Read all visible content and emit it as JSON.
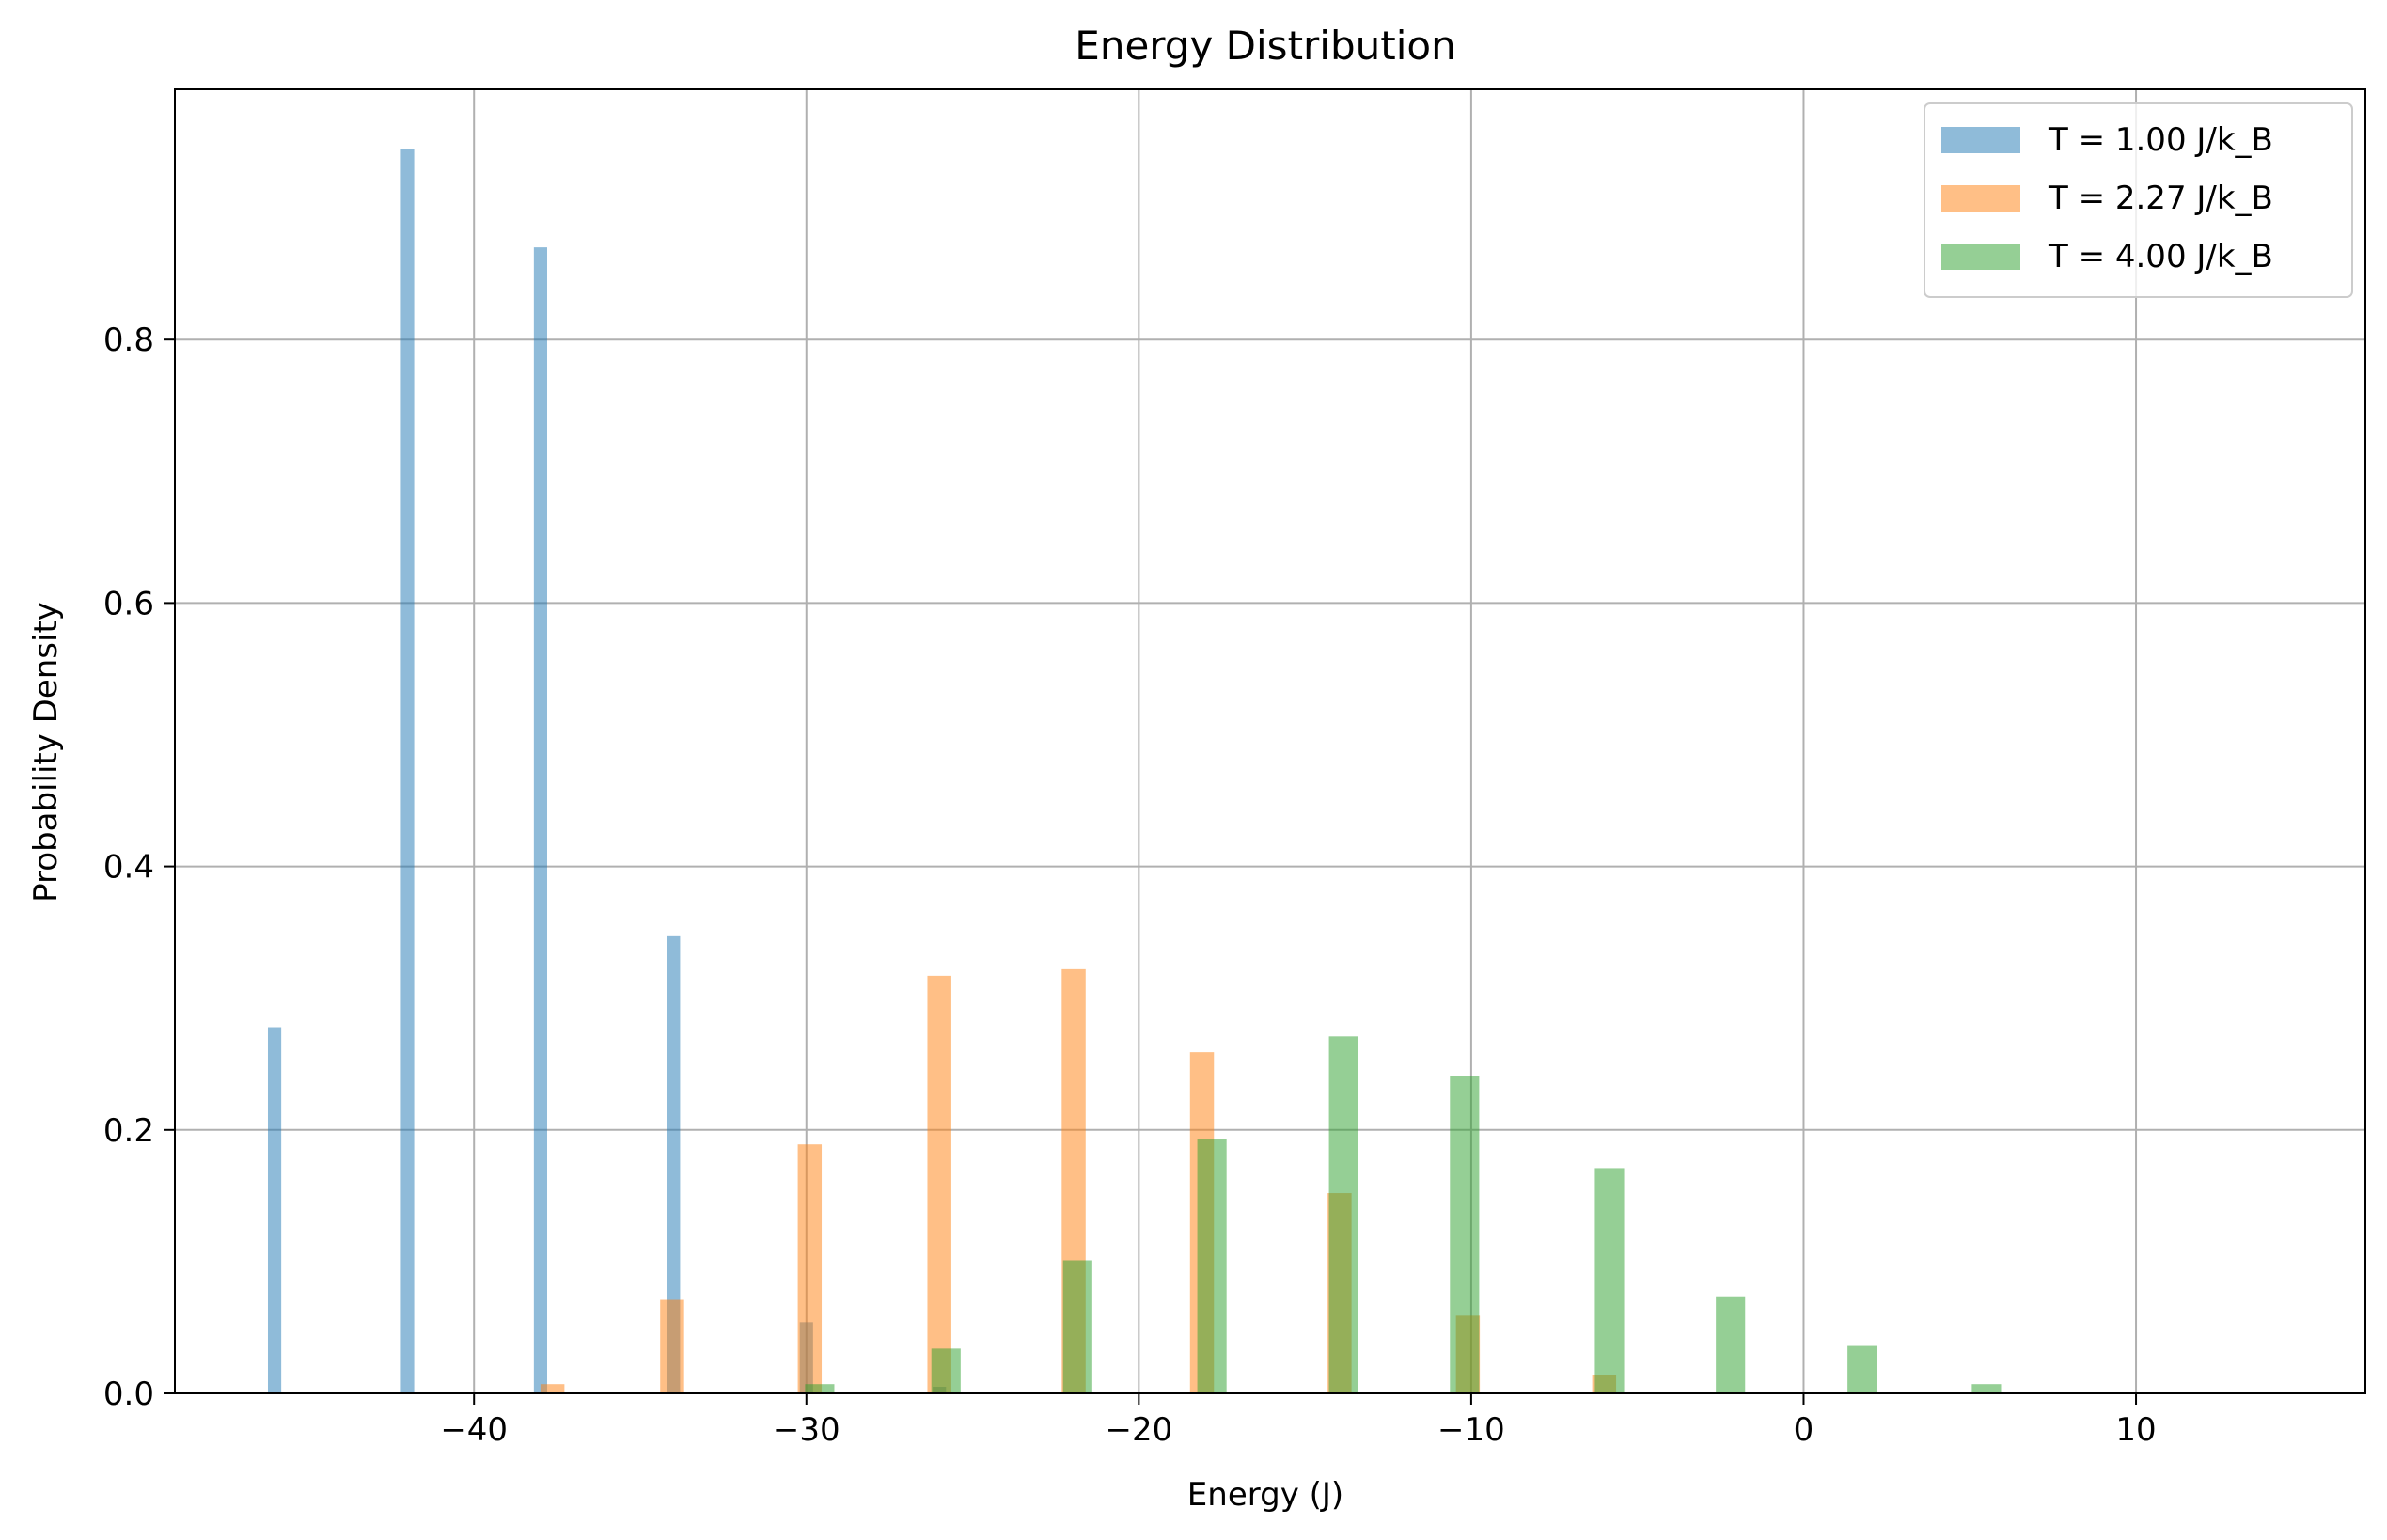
{
  "chart_data": {
    "type": "bar",
    "title": "Energy Distribution",
    "xlabel": "Energy (J)",
    "ylabel": "Probability Density",
    "xlim": [
      -49,
      16.9
    ],
    "ylim": [
      0,
      0.99
    ],
    "xticks": [
      -40,
      -30,
      -20,
      -10,
      0,
      10
    ],
    "xtick_labels": [
      "−40",
      "−30",
      "−20",
      "−10",
      "0",
      "10"
    ],
    "yticks": [
      0.0,
      0.2,
      0.4,
      0.6,
      0.8
    ],
    "ytick_labels": [
      "0.0",
      "0.2",
      "0.4",
      "0.6",
      "0.8"
    ],
    "grid": true,
    "legend_position": "top-right",
    "series": [
      {
        "name": "T = 1.00 J/k_B",
        "color": "#1f77b4",
        "bin_width": 0.4,
        "bars": [
          {
            "x": -46.0,
            "value": 0.278
          },
          {
            "x": -42.0,
            "value": 0.945
          },
          {
            "x": -38.0,
            "value": 0.87
          },
          {
            "x": -34.0,
            "value": 0.347
          },
          {
            "x": -30.0,
            "value": 0.054
          },
          {
            "x": -26.0,
            "value": 0.005
          }
        ]
      },
      {
        "name": "T = 2.27 J/k_B",
        "color": "#ff7f0e",
        "bin_width": 0.72,
        "bars": [
          {
            "x": -37.64,
            "value": 0.007
          },
          {
            "x": -34.04,
            "value": 0.071
          },
          {
            "x": -29.9,
            "value": 0.189
          },
          {
            "x": -26.0,
            "value": 0.317
          },
          {
            "x": -21.96,
            "value": 0.322
          },
          {
            "x": -18.1,
            "value": 0.259
          },
          {
            "x": -13.96,
            "value": 0.152
          },
          {
            "x": -10.1,
            "value": 0.059
          },
          {
            "x": -6.0,
            "value": 0.014
          }
        ]
      },
      {
        "name": "T = 4.00 J/k_B",
        "color": "#2ca02c",
        "bin_width": 0.88,
        "bars": [
          {
            "x": -29.6,
            "value": 0.007
          },
          {
            "x": -25.8,
            "value": 0.034
          },
          {
            "x": -21.84,
            "value": 0.101
          },
          {
            "x": -17.8,
            "value": 0.193
          },
          {
            "x": -13.84,
            "value": 0.271
          },
          {
            "x": -10.2,
            "value": 0.241
          },
          {
            "x": -5.84,
            "value": 0.171
          },
          {
            "x": -2.2,
            "value": 0.073
          },
          {
            "x": 1.76,
            "value": 0.036
          },
          {
            "x": 5.5,
            "value": 0.007
          }
        ]
      }
    ]
  }
}
